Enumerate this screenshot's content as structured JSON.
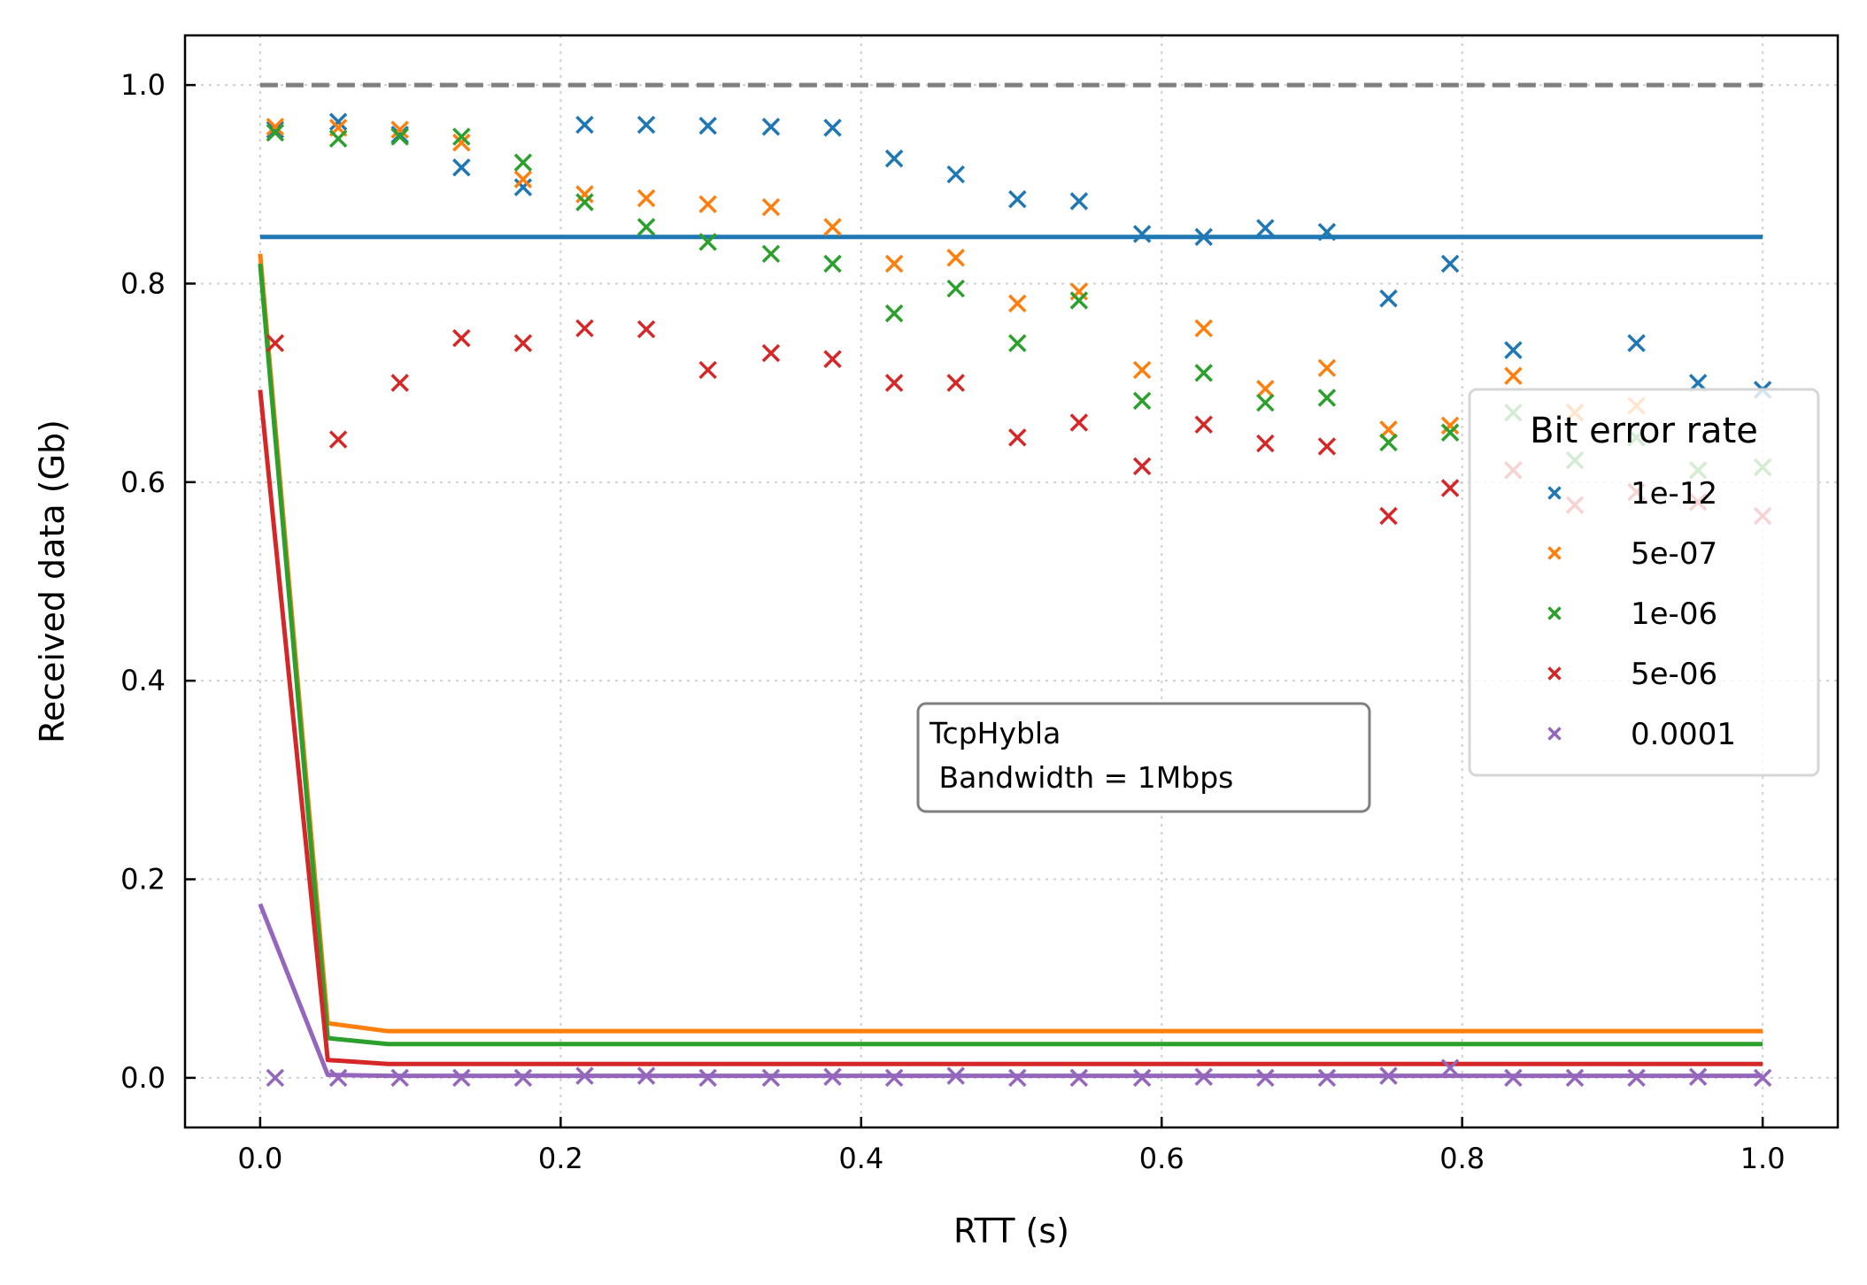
{
  "chart_data": {
    "type": "scatter",
    "xlabel": "RTT (s)",
    "ylabel": "Received data (Gb)",
    "xlim": [
      -0.05,
      1.05
    ],
    "ylim": [
      -0.05,
      1.05
    ],
    "x_ticks": [
      0.0,
      0.2,
      0.4,
      0.6,
      0.8,
      1.0
    ],
    "x_tick_labels": [
      "0.0",
      "0.2",
      "0.4",
      "0.6",
      "0.8",
      "1.0"
    ],
    "y_ticks": [
      0.0,
      0.2,
      0.4,
      0.6,
      0.8,
      1.0
    ],
    "y_tick_labels": [
      "0.0",
      "0.2",
      "0.4",
      "0.6",
      "0.8",
      "1.0"
    ],
    "grid": true,
    "legend": {
      "title": "Bit error rate",
      "placement": "right",
      "entries": [
        "1e-12",
        "5e-07",
        "1e-06",
        "5e-06",
        "0.0001"
      ]
    },
    "annotation": {
      "line1": "TcpHybla",
      "line2": " Bandwidth = 1Mbps"
    },
    "reference_line": {
      "y": 1.0,
      "color": "#7f7f7f",
      "style": "dashed"
    },
    "x": [
      0.01,
      0.052,
      0.093,
      0.134,
      0.175,
      0.216,
      0.257,
      0.298,
      0.34,
      0.381,
      0.422,
      0.463,
      0.504,
      0.545,
      0.587,
      0.628,
      0.669,
      0.71,
      0.751,
      0.792,
      0.834,
      0.875,
      0.916,
      0.957,
      1.0
    ],
    "series": [
      {
        "name": "1e-12",
        "color": "#1f77b4",
        "scatter": [
          0.955,
          0.963,
          0.95,
          0.917,
          0.897,
          0.96,
          0.96,
          0.959,
          0.958,
          0.957,
          0.926,
          0.91,
          0.885,
          0.883,
          0.85,
          0.847,
          0.856,
          0.852,
          0.785,
          0.82,
          0.733,
          0.67,
          0.74,
          0.7,
          0.693
        ],
        "line_x": [
          0.0,
          1.0
        ],
        "line_y": [
          0.847,
          0.847
        ]
      },
      {
        "name": "5e-07",
        "color": "#ff7f0e",
        "scatter": [
          0.958,
          0.957,
          0.955,
          0.942,
          0.905,
          0.89,
          0.886,
          0.88,
          0.877,
          0.857,
          0.82,
          0.826,
          0.78,
          0.792,
          0.713,
          0.755,
          0.694,
          0.715,
          0.653,
          0.657,
          0.707,
          0.67,
          0.677,
          0.612,
          0.615
        ],
        "line_x": [
          0.0,
          0.045,
          0.085,
          1.0
        ],
        "line_y": [
          0.83,
          0.055,
          0.047,
          0.047
        ]
      },
      {
        "name": "1e-06",
        "color": "#2ca02c",
        "scatter": [
          0.952,
          0.946,
          0.948,
          0.948,
          0.922,
          0.882,
          0.857,
          0.842,
          0.83,
          0.82,
          0.77,
          0.795,
          0.74,
          0.783,
          0.682,
          0.71,
          0.68,
          0.685,
          0.64,
          0.65,
          0.67,
          0.622,
          0.645,
          0.612,
          0.615
        ],
        "line_x": [
          0.0,
          0.045,
          0.085,
          1.0
        ],
        "line_y": [
          0.82,
          0.04,
          0.034,
          0.034
        ]
      },
      {
        "name": "5e-06",
        "color": "#d62728",
        "scatter": [
          0.74,
          0.643,
          0.7,
          0.745,
          0.74,
          0.755,
          0.754,
          0.713,
          0.73,
          0.724,
          0.7,
          0.7,
          0.645,
          0.66,
          0.616,
          0.658,
          0.639,
          0.636,
          0.566,
          0.594,
          0.612,
          0.577,
          0.59,
          0.58,
          0.566
        ],
        "line_x": [
          0.0,
          0.045,
          0.085,
          1.0
        ],
        "line_y": [
          0.693,
          0.018,
          0.014,
          0.014
        ]
      },
      {
        "name": "0.0001",
        "color": "#9467bd",
        "scatter": [
          0.0,
          0.0,
          0.0,
          0.0,
          0.0,
          0.002,
          0.002,
          0.0,
          0.0,
          0.001,
          0.0,
          0.002,
          0.0,
          0.0,
          0.0,
          0.001,
          0.0,
          0.0,
          0.002,
          0.01,
          0.0,
          0.0,
          0.0,
          0.001,
          0.0
        ],
        "line_x": [
          0.0,
          0.045,
          0.085,
          1.0
        ],
        "line_y": [
          0.175,
          0.003,
          0.002,
          0.002
        ]
      }
    ]
  }
}
